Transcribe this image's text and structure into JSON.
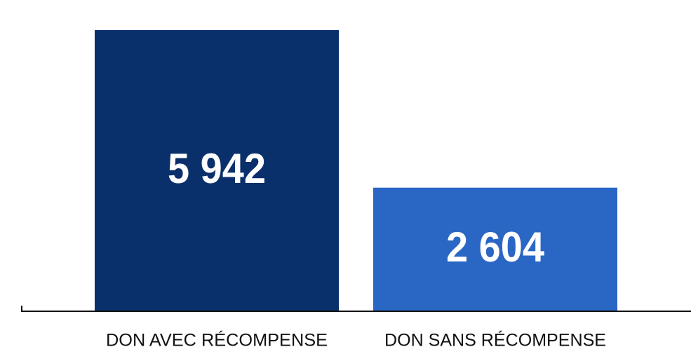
{
  "chart_data": {
    "type": "bar",
    "categories": [
      "DON AVEC RÉCOMPENSE",
      "DON SANS RÉCOMPENSE"
    ],
    "values": [
      5942,
      2604
    ],
    "value_labels": [
      "5 942",
      "2 604"
    ],
    "colors": [
      "#0a306b",
      "#2a67c4"
    ]
  }
}
